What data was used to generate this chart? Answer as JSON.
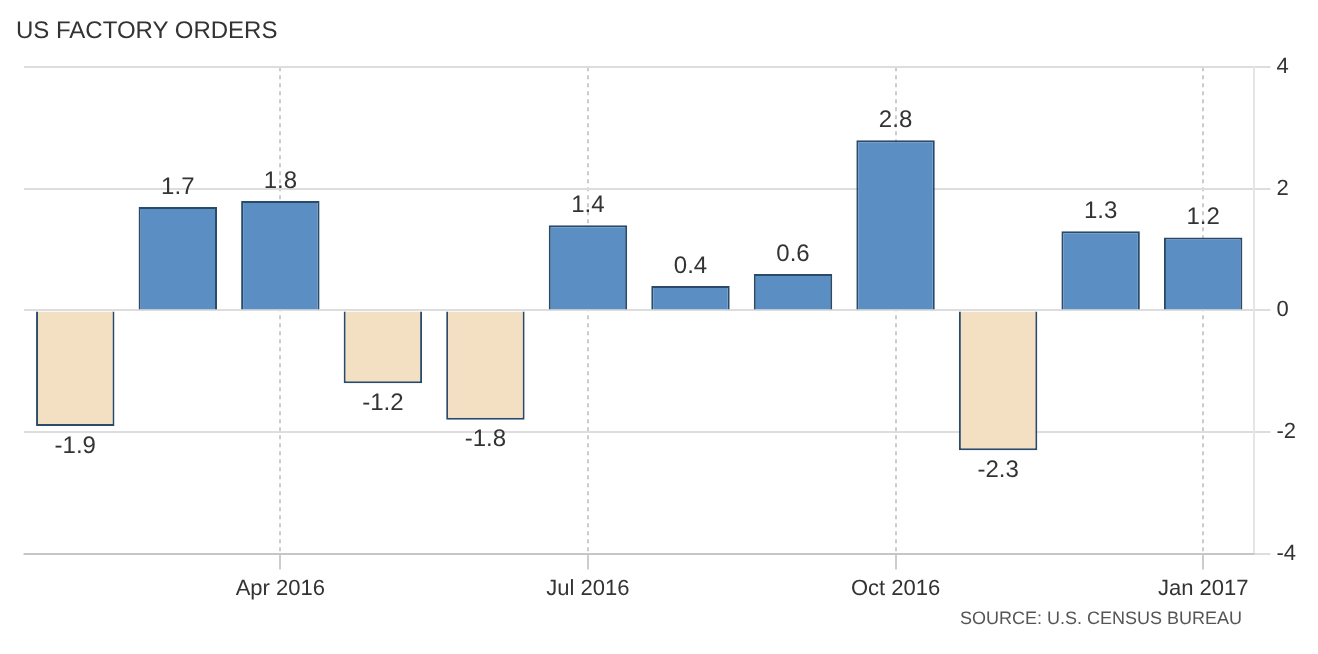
{
  "chart_data": {
    "type": "bar",
    "title": "US FACTORY ORDERS",
    "categories": [
      null,
      null,
      "Apr 2016",
      null,
      null,
      "Jul 2016",
      null,
      null,
      "Oct 2016",
      null,
      null,
      "Jan 2017"
    ],
    "values": [
      -1.9,
      1.7,
      1.8,
      -1.2,
      -1.8,
      1.4,
      0.4,
      0.6,
      2.8,
      -2.3,
      1.3,
      1.2
    ],
    "colors": [
      "#f3e0c2",
      "#5b8fc4",
      "#5b8fc4",
      "#f3e0c2",
      "#f3e0c2",
      "#5b8fc4",
      "#5b8fc4",
      "#5b8fc4",
      "#5b8fc4",
      "#f3e0c2",
      "#5b8fc4",
      "#5b8fc4"
    ],
    "ylim": [
      -4,
      4
    ],
    "yticks": [
      -4,
      -2,
      0,
      2,
      4
    ],
    "grid": true,
    "legend": false,
    "data_labels": true,
    "annotations": [
      "SOURCE: U.S. CENSUS BUREAU"
    ]
  }
}
